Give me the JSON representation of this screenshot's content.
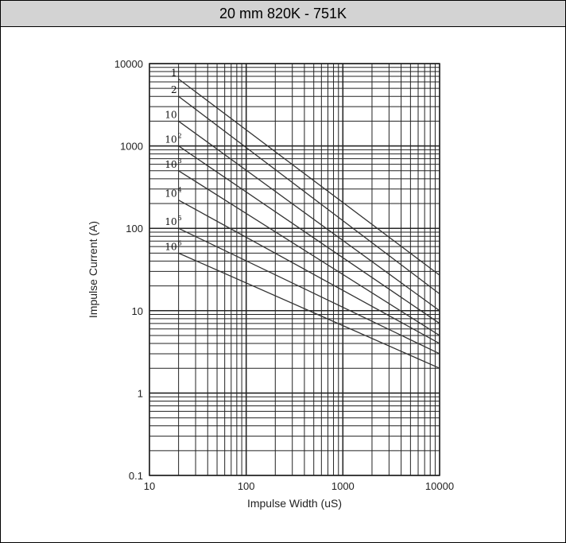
{
  "title": "20 mm 820K - 751K",
  "chart_data": {
    "type": "line",
    "title": "20 mm 820K - 751K",
    "xlabel": "Impulse Width (uS)",
    "ylabel": "Impulse Current (A)",
    "x_scale": "log",
    "y_scale": "log",
    "xlim": [
      10,
      10000
    ],
    "ylim": [
      0.1,
      10000
    ],
    "x_tick_labels": [
      "10",
      "100",
      "1000",
      "10000"
    ],
    "y_tick_labels": [
      "0.1",
      "1",
      "10",
      "100",
      "1000",
      "10000"
    ],
    "grid": true,
    "series": [
      {
        "name": "1",
        "label_base": "1",
        "label_exp": "",
        "x": [
          20,
          10000
        ],
        "y": [
          6500,
          27
        ]
      },
      {
        "name": "2",
        "label_base": "2",
        "label_exp": "",
        "x": [
          20,
          10000
        ],
        "y": [
          4000,
          16
        ]
      },
      {
        "name": "10",
        "label_base": "10",
        "label_exp": "",
        "x": [
          20,
          10000
        ],
        "y": [
          2000,
          10
        ]
      },
      {
        "name": "10^2",
        "label_base": "10",
        "label_exp": "2",
        "x": [
          20,
          10000
        ],
        "y": [
          1000,
          7
        ]
      },
      {
        "name": "10^3",
        "label_base": "10",
        "label_exp": "3",
        "x": [
          20,
          10000
        ],
        "y": [
          500,
          5
        ]
      },
      {
        "name": "10^4",
        "label_base": "10",
        "label_exp": "4",
        "x": [
          20,
          10000
        ],
        "y": [
          220,
          4
        ]
      },
      {
        "name": "10^5",
        "label_base": "10",
        "label_exp": "5",
        "x": [
          20,
          10000
        ],
        "y": [
          100,
          3
        ]
      },
      {
        "name": "10^6",
        "label_base": "10",
        "label_exp": "6",
        "x": [
          20,
          10000
        ],
        "y": [
          50,
          2
        ]
      }
    ]
  }
}
